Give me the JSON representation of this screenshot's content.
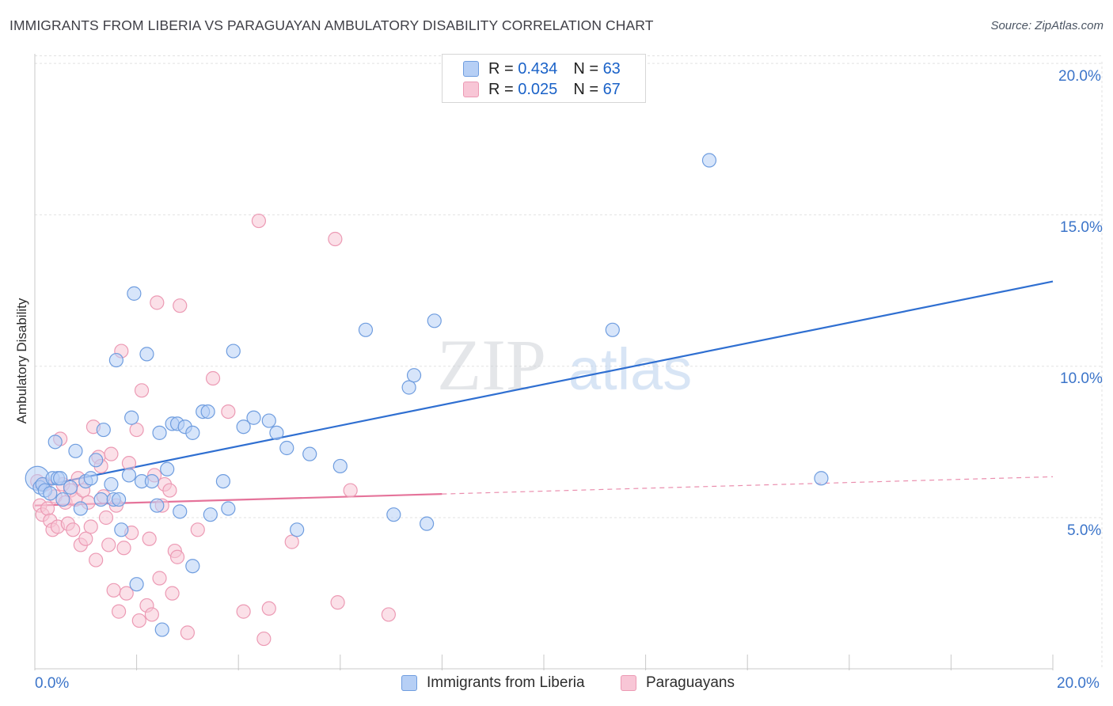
{
  "header": {
    "title": "IMMIGRANTS FROM LIBERIA VS PARAGUAYAN AMBULATORY DISABILITY CORRELATION CHART",
    "source": "Source: ZipAtlas.com"
  },
  "watermark": {
    "zip": "ZIP",
    "atlas": "atlas"
  },
  "legend_top": {
    "rows": [
      {
        "r_label": "R = ",
        "r_value": "0.434",
        "n_label": "N = ",
        "n_value": "63"
      },
      {
        "r_label": "R = ",
        "r_value": "0.025",
        "n_label": "N = ",
        "n_value": "67"
      }
    ]
  },
  "legend_bottom": {
    "series_a": "Immigrants from Liberia",
    "series_b": "Paraguayans"
  },
  "colors": {
    "blue_fill": "#b6cff5",
    "blue_stroke": "#6f9ddf",
    "blue_line": "#2f6fd1",
    "pink_fill": "#f8c6d6",
    "pink_stroke": "#ec9ab4",
    "pink_line": "#e5739a",
    "grid": "#e2e2e2",
    "axis_text": "#3b74c9"
  },
  "chart_data": {
    "type": "scatter",
    "title": "IMMIGRANTS FROM LIBERIA VS PARAGUAYAN AMBULATORY DISABILITY CORRELATION CHART",
    "xlabel": "",
    "ylabel": "Ambulatory Disability",
    "xlim": [
      0,
      20
    ],
    "ylim": [
      0.5,
      20.5
    ],
    "x_tick_labels": [
      "0.0%",
      "20.0%"
    ],
    "y_tick_labels": [
      "5.0%",
      "10.0%",
      "15.0%",
      "20.0%"
    ],
    "y_ticks": [
      5,
      10,
      15,
      20
    ],
    "grid": true,
    "legend": "top-center",
    "series": [
      {
        "name": "Immigrants from Liberia",
        "r": 0.434,
        "n": 63,
        "points": [
          [
            0.05,
            6.3
          ],
          [
            0.1,
            6.0
          ],
          [
            0.15,
            6.1
          ],
          [
            0.2,
            5.9
          ],
          [
            0.3,
            5.8
          ],
          [
            0.35,
            6.3
          ],
          [
            0.4,
            7.5
          ],
          [
            0.45,
            6.3
          ],
          [
            0.5,
            6.3
          ],
          [
            0.55,
            5.6
          ],
          [
            0.7,
            6.0
          ],
          [
            0.8,
            7.2
          ],
          [
            0.9,
            5.3
          ],
          [
            1.0,
            6.2
          ],
          [
            1.1,
            6.3
          ],
          [
            1.2,
            6.9
          ],
          [
            1.3,
            5.6
          ],
          [
            1.35,
            7.9
          ],
          [
            1.5,
            6.1
          ],
          [
            1.55,
            5.6
          ],
          [
            1.6,
            10.2
          ],
          [
            1.65,
            5.6
          ],
          [
            1.7,
            4.6
          ],
          [
            1.85,
            6.4
          ],
          [
            1.9,
            8.3
          ],
          [
            1.95,
            12.4
          ],
          [
            2.0,
            2.8
          ],
          [
            2.1,
            6.2
          ],
          [
            2.2,
            10.4
          ],
          [
            2.3,
            6.2
          ],
          [
            2.4,
            5.4
          ],
          [
            2.45,
            7.8
          ],
          [
            2.5,
            1.3
          ],
          [
            2.6,
            6.6
          ],
          [
            2.7,
            8.1
          ],
          [
            2.8,
            8.1
          ],
          [
            2.85,
            5.2
          ],
          [
            2.95,
            8.0
          ],
          [
            3.1,
            7.8
          ],
          [
            3.1,
            3.4
          ],
          [
            3.3,
            8.5
          ],
          [
            3.4,
            8.5
          ],
          [
            3.45,
            5.1
          ],
          [
            3.7,
            6.2
          ],
          [
            3.8,
            5.3
          ],
          [
            3.9,
            10.5
          ],
          [
            4.1,
            8.0
          ],
          [
            4.3,
            8.3
          ],
          [
            4.6,
            8.2
          ],
          [
            4.75,
            7.8
          ],
          [
            4.95,
            7.3
          ],
          [
            5.15,
            4.6
          ],
          [
            5.4,
            7.1
          ],
          [
            6.0,
            6.7
          ],
          [
            6.5,
            11.2
          ],
          [
            7.05,
            5.1
          ],
          [
            7.35,
            9.3
          ],
          [
            7.45,
            9.7
          ],
          [
            7.7,
            4.8
          ],
          [
            7.85,
            11.5
          ],
          [
            11.35,
            11.2
          ],
          [
            13.25,
            16.8
          ],
          [
            15.45,
            6.3
          ]
        ],
        "trend": {
          "x": [
            0.0,
            20.0
          ],
          "y": [
            6.0,
            12.8
          ]
        }
      },
      {
        "name": "Paraguayans",
        "r": 0.025,
        "n": 67,
        "points": [
          [
            0.05,
            6.2
          ],
          [
            0.1,
            5.4
          ],
          [
            0.15,
            5.1
          ],
          [
            0.2,
            6.1
          ],
          [
            0.25,
            5.3
          ],
          [
            0.3,
            4.9
          ],
          [
            0.35,
            4.6
          ],
          [
            0.4,
            5.7
          ],
          [
            0.45,
            4.7
          ],
          [
            0.5,
            7.6
          ],
          [
            0.55,
            6.1
          ],
          [
            0.6,
            5.5
          ],
          [
            0.65,
            4.8
          ],
          [
            0.7,
            5.9
          ],
          [
            0.75,
            4.6
          ],
          [
            0.8,
            5.6
          ],
          [
            0.85,
            6.3
          ],
          [
            0.9,
            4.1
          ],
          [
            0.95,
            5.9
          ],
          [
            1.0,
            4.3
          ],
          [
            1.05,
            5.5
          ],
          [
            1.1,
            4.7
          ],
          [
            1.15,
            8.0
          ],
          [
            1.2,
            3.6
          ],
          [
            1.25,
            7.0
          ],
          [
            1.3,
            6.7
          ],
          [
            1.35,
            5.7
          ],
          [
            1.4,
            5.0
          ],
          [
            1.45,
            4.1
          ],
          [
            1.5,
            7.1
          ],
          [
            1.55,
            2.6
          ],
          [
            1.6,
            5.4
          ],
          [
            1.65,
            1.9
          ],
          [
            1.7,
            10.5
          ],
          [
            1.8,
            2.5
          ],
          [
            1.85,
            6.8
          ],
          [
            1.9,
            4.5
          ],
          [
            2.0,
            7.9
          ],
          [
            2.05,
            1.6
          ],
          [
            2.1,
            9.2
          ],
          [
            2.2,
            2.1
          ],
          [
            2.25,
            4.3
          ],
          [
            2.3,
            1.8
          ],
          [
            2.35,
            6.4
          ],
          [
            2.4,
            12.1
          ],
          [
            2.45,
            3.0
          ],
          [
            2.5,
            5.4
          ],
          [
            2.55,
            6.1
          ],
          [
            2.65,
            5.9
          ],
          [
            2.7,
            2.5
          ],
          [
            2.75,
            3.9
          ],
          [
            2.8,
            3.7
          ],
          [
            2.85,
            12.0
          ],
          [
            3.0,
            1.2
          ],
          [
            3.2,
            4.6
          ],
          [
            3.5,
            9.6
          ],
          [
            3.8,
            8.5
          ],
          [
            4.1,
            1.9
          ],
          [
            4.4,
            14.8
          ],
          [
            4.5,
            1.0
          ],
          [
            4.6,
            2.0
          ],
          [
            5.9,
            14.2
          ],
          [
            5.95,
            2.2
          ],
          [
            6.2,
            5.9
          ],
          [
            6.95,
            1.8
          ],
          [
            5.05,
            4.2
          ],
          [
            1.75,
            4.0
          ]
        ],
        "trend": {
          "x": [
            0.0,
            20.0
          ],
          "y": [
            5.4,
            6.35
          ]
        },
        "trend_solid_until_x": 8.0
      }
    ]
  }
}
